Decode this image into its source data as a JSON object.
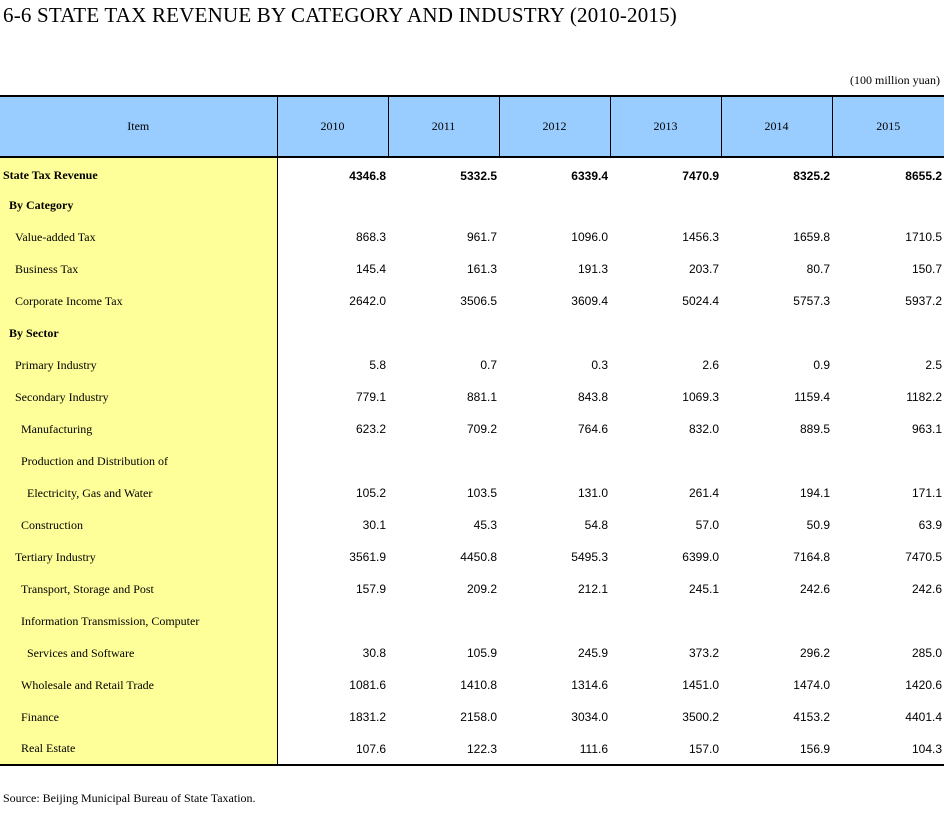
{
  "title": "6-6  STATE TAX REVENUE BY CATEGORY AND INDUSTRY (2010-2015)",
  "unit": "(100 million yuan)",
  "headers": [
    "Item",
    "2010",
    "2011",
    "2012",
    "2013",
    "2014",
    "2015"
  ],
  "rows": [
    {
      "label": "State Tax Revenue",
      "values": [
        "4346.8",
        "5332.5",
        "6339.4",
        "7470.9",
        "8325.2",
        "8655.2"
      ]
    },
    {
      "label": "By Category",
      "values": [
        "",
        "",
        "",
        "",
        "",
        ""
      ]
    },
    {
      "label": "Value-added Tax",
      "values": [
        "868.3",
        "961.7",
        "1096.0",
        "1456.3",
        "1659.8",
        "1710.5"
      ]
    },
    {
      "label": "Business Tax",
      "values": [
        "145.4",
        "161.3",
        "191.3",
        "203.7",
        "80.7",
        "150.7"
      ]
    },
    {
      "label": "Corporate Income Tax",
      "values": [
        "2642.0",
        "3506.5",
        "3609.4",
        "5024.4",
        "5757.3",
        "5937.2"
      ]
    },
    {
      "label": "By Sector",
      "values": [
        "",
        "",
        "",
        "",
        "",
        ""
      ]
    },
    {
      "label": "Primary Industry",
      "values": [
        "5.8",
        "0.7",
        "0.3",
        "2.6",
        "0.9",
        "2.5"
      ]
    },
    {
      "label": "Secondary Industry",
      "values": [
        "779.1",
        "881.1",
        "843.8",
        "1069.3",
        "1159.4",
        "1182.2"
      ]
    },
    {
      "label": "Manufacturing",
      "values": [
        "623.2",
        "709.2",
        "764.6",
        "832.0",
        "889.5",
        "963.1"
      ]
    },
    {
      "label": "Production and Distribution of",
      "values": [
        "",
        "",
        "",
        "",
        "",
        ""
      ]
    },
    {
      "label": "Electricity, Gas and Water",
      "values": [
        "105.2",
        "103.5",
        "131.0",
        "261.4",
        "194.1",
        "171.1"
      ]
    },
    {
      "label": "Construction",
      "values": [
        "30.1",
        "45.3",
        "54.8",
        "57.0",
        "50.9",
        "63.9"
      ]
    },
    {
      "label": "Tertiary Industry",
      "values": [
        "3561.9",
        "4450.8",
        "5495.3",
        "6399.0",
        "7164.8",
        "7470.5"
      ]
    },
    {
      "label": "Transport, Storage and Post",
      "values": [
        "157.9",
        "209.2",
        "212.1",
        "245.1",
        "242.6",
        "242.6"
      ]
    },
    {
      "label": "Information Transmission, Computer",
      "values": [
        "",
        "",
        "",
        "",
        "",
        ""
      ]
    },
    {
      "label": "Services and Software",
      "values": [
        "30.8",
        "105.9",
        "245.9",
        "373.2",
        "296.2",
        "285.0"
      ]
    },
    {
      "label": "Wholesale and Retail Trade",
      "values": [
        "1081.6",
        "1410.8",
        "1314.6",
        "1451.0",
        "1474.0",
        "1420.6"
      ]
    },
    {
      "label": "Finance",
      "values": [
        "1831.2",
        "2158.0",
        "3034.0",
        "3500.2",
        "4153.2",
        "4401.4"
      ]
    },
    {
      "label": "Real Estate",
      "values": [
        "107.6",
        "122.3",
        "111.6",
        "157.0",
        "156.9",
        "104.3"
      ]
    }
  ],
  "source": "Source: Beijing Municipal Bureau of State Taxation.",
  "colors": {
    "header_bg": "#99ccff",
    "item_bg": "#ffff99"
  }
}
